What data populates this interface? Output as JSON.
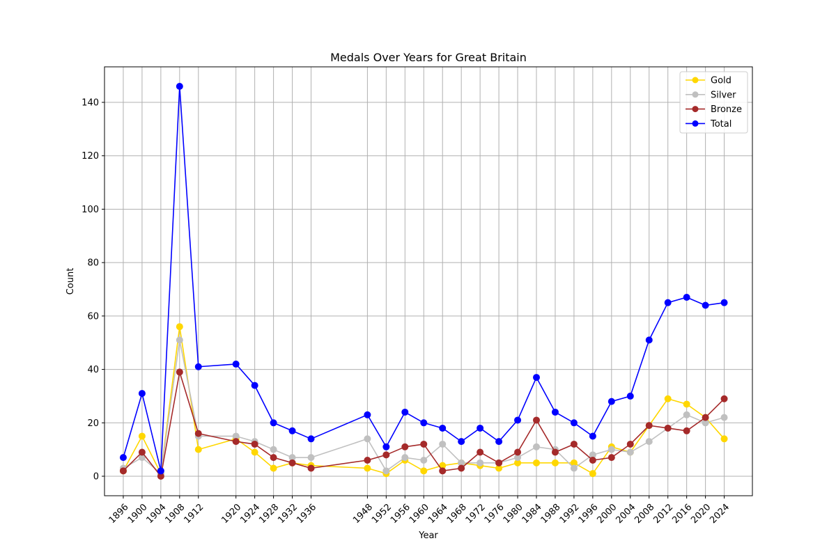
{
  "chart_data": {
    "type": "line",
    "title": "Medals Over Years for Great Britain",
    "xlabel": "Year",
    "ylabel": "Count",
    "x": [
      1896,
      1900,
      1904,
      1908,
      1912,
      1920,
      1924,
      1928,
      1932,
      1936,
      1948,
      1952,
      1956,
      1960,
      1964,
      1968,
      1972,
      1976,
      1980,
      1984,
      1988,
      1992,
      1996,
      2000,
      2004,
      2008,
      2012,
      2016,
      2020,
      2024
    ],
    "xlim": [
      1892,
      2030
    ],
    "ylim": [
      -7.3,
      153.3
    ],
    "yticks": [
      0,
      20,
      40,
      60,
      80,
      100,
      120,
      140
    ],
    "grid": true,
    "legend_position": "top-right",
    "series": [
      {
        "name": "Gold",
        "color": "#FFD700",
        "values": [
          2,
          15,
          1,
          56,
          10,
          14,
          9,
          3,
          5,
          4,
          3,
          1,
          6,
          2,
          4,
          5,
          4,
          3,
          5,
          5,
          5,
          5,
          1,
          11,
          9,
          19,
          29,
          27,
          22,
          14
        ]
      },
      {
        "name": "Silver",
        "color": "#C0C0C0",
        "values": [
          3,
          7,
          1,
          51,
          15,
          15,
          13,
          10,
          7,
          7,
          14,
          2,
          7,
          6,
          12,
          5,
          5,
          5,
          7,
          11,
          10,
          3,
          8,
          10,
          9,
          13,
          18,
          23,
          20,
          22
        ]
      },
      {
        "name": "Bronze",
        "color": "#A52A2A",
        "values": [
          2,
          9,
          0,
          39,
          16,
          13,
          12,
          7,
          5,
          3,
          6,
          8,
          11,
          12,
          2,
          3,
          9,
          5,
          9,
          21,
          9,
          12,
          6,
          7,
          12,
          19,
          18,
          17,
          22,
          29
        ]
      },
      {
        "name": "Total",
        "color": "#0000FF",
        "values": [
          7,
          31,
          2,
          146,
          41,
          42,
          34,
          20,
          17,
          14,
          23,
          11,
          24,
          20,
          18,
          13,
          18,
          13,
          21,
          37,
          24,
          20,
          15,
          28,
          30,
          51,
          65,
          67,
          64,
          65
        ]
      }
    ]
  }
}
